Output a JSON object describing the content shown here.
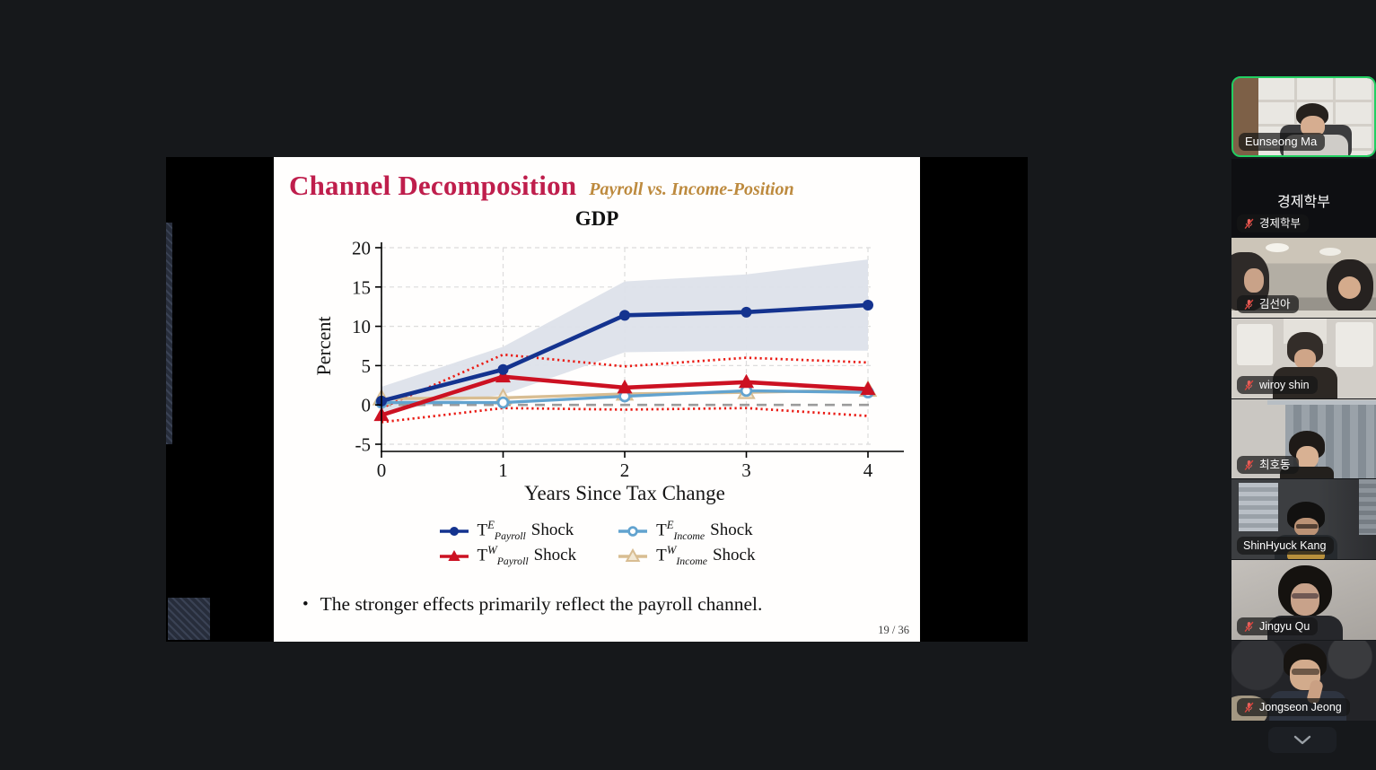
{
  "app": {
    "background": "#16181b",
    "active_speaker_border": "#22cf62",
    "mute_icon_color": "#e8625c"
  },
  "slide": {
    "title": "Channel Decomposition",
    "title_color": "#bf1e4c",
    "subtitle": "Payroll vs. Income-Position",
    "subtitle_color": "#bd8a3e",
    "bullet": "The stronger effects primarily reflect the payroll channel.",
    "bullet_dot": "•",
    "page": "19 / 36"
  },
  "chart_data": {
    "type": "line",
    "title": "GDP",
    "xlabel": "Years Since Tax Change",
    "ylabel": "Percent",
    "x": [
      0,
      1,
      2,
      3,
      4
    ],
    "xlim": [
      0,
      4
    ],
    "ylim": [
      -5,
      20
    ],
    "yticks": [
      -5,
      0,
      5,
      10,
      15,
      20
    ],
    "grid": "dashed",
    "legend_position": "bottom",
    "series": [
      {
        "name": "TE_Payroll Shock",
        "color": "#14338f",
        "marker": "circle-filled",
        "values": [
          0.5,
          4.5,
          11.4,
          11.8,
          12.7
        ]
      },
      {
        "name": "TW_Payroll Shock",
        "color": "#cc1122",
        "marker": "triangle-filled",
        "values": [
          -1.3,
          3.6,
          2.2,
          2.9,
          2.0
        ]
      },
      {
        "name": "TE_Income Shock",
        "color": "#62a3cf",
        "marker": "circle-open",
        "values": [
          0.3,
          0.3,
          1.1,
          1.8,
          1.6
        ]
      },
      {
        "name": "TW_Income Shock",
        "color": "#d8bd92",
        "marker": "triangle-open",
        "values": [
          0.8,
          0.9,
          1.4,
          1.6,
          1.9
        ]
      }
    ],
    "band": {
      "series": "TE_Payroll Shock",
      "color": "#dde2ea",
      "low": [
        -0.9,
        1.3,
        6.7,
        6.9,
        6.9
      ],
      "high": [
        2.3,
        7.4,
        15.7,
        16.6,
        18.5
      ]
    },
    "dotted_ci": {
      "series": "TW_Payroll Shock",
      "color": "#ea1b14",
      "low": [
        -2.2,
        -0.4,
        -0.6,
        -0.4,
        -1.4
      ],
      "high": [
        -0.4,
        6.4,
        4.9,
        6.0,
        5.4
      ]
    },
    "zero_line": {
      "value": 0,
      "color": "#9b9b9b",
      "style": "dashed"
    },
    "legend": [
      {
        "series": 0,
        "t": "T",
        "sup": "E",
        "sub": "Payroll",
        "rest": "Shock"
      },
      {
        "series": 2,
        "t": "T",
        "sup": "E",
        "sub": "Income",
        "rest": "Shock"
      },
      {
        "series": 1,
        "t": "T",
        "sup": "W",
        "sub": "Payroll",
        "rest": "Shock"
      },
      {
        "series": 3,
        "t": "T",
        "sup": "W",
        "sub": "Income",
        "rest": "Shock"
      }
    ]
  },
  "sidebar": {
    "participants": [
      {
        "name": "Eunseong Ma",
        "muted": false,
        "active": true,
        "video": true
      },
      {
        "name": "경제학부",
        "muted": true,
        "active": false,
        "video": false
      },
      {
        "name": "김선아",
        "muted": true,
        "active": false,
        "video": true
      },
      {
        "name": "wiroy shin",
        "muted": true,
        "active": false,
        "video": true
      },
      {
        "name": "최호동",
        "muted": true,
        "active": false,
        "video": true
      },
      {
        "name": "ShinHyuck Kang",
        "muted": false,
        "active": false,
        "video": true
      },
      {
        "name": "Jingyu Qu",
        "muted": true,
        "active": false,
        "video": true
      },
      {
        "name": "Jongseon Jeong",
        "muted": true,
        "active": false,
        "video": true
      }
    ]
  },
  "controls": {
    "collapse_thumbnails_icon": "chevron-down"
  }
}
